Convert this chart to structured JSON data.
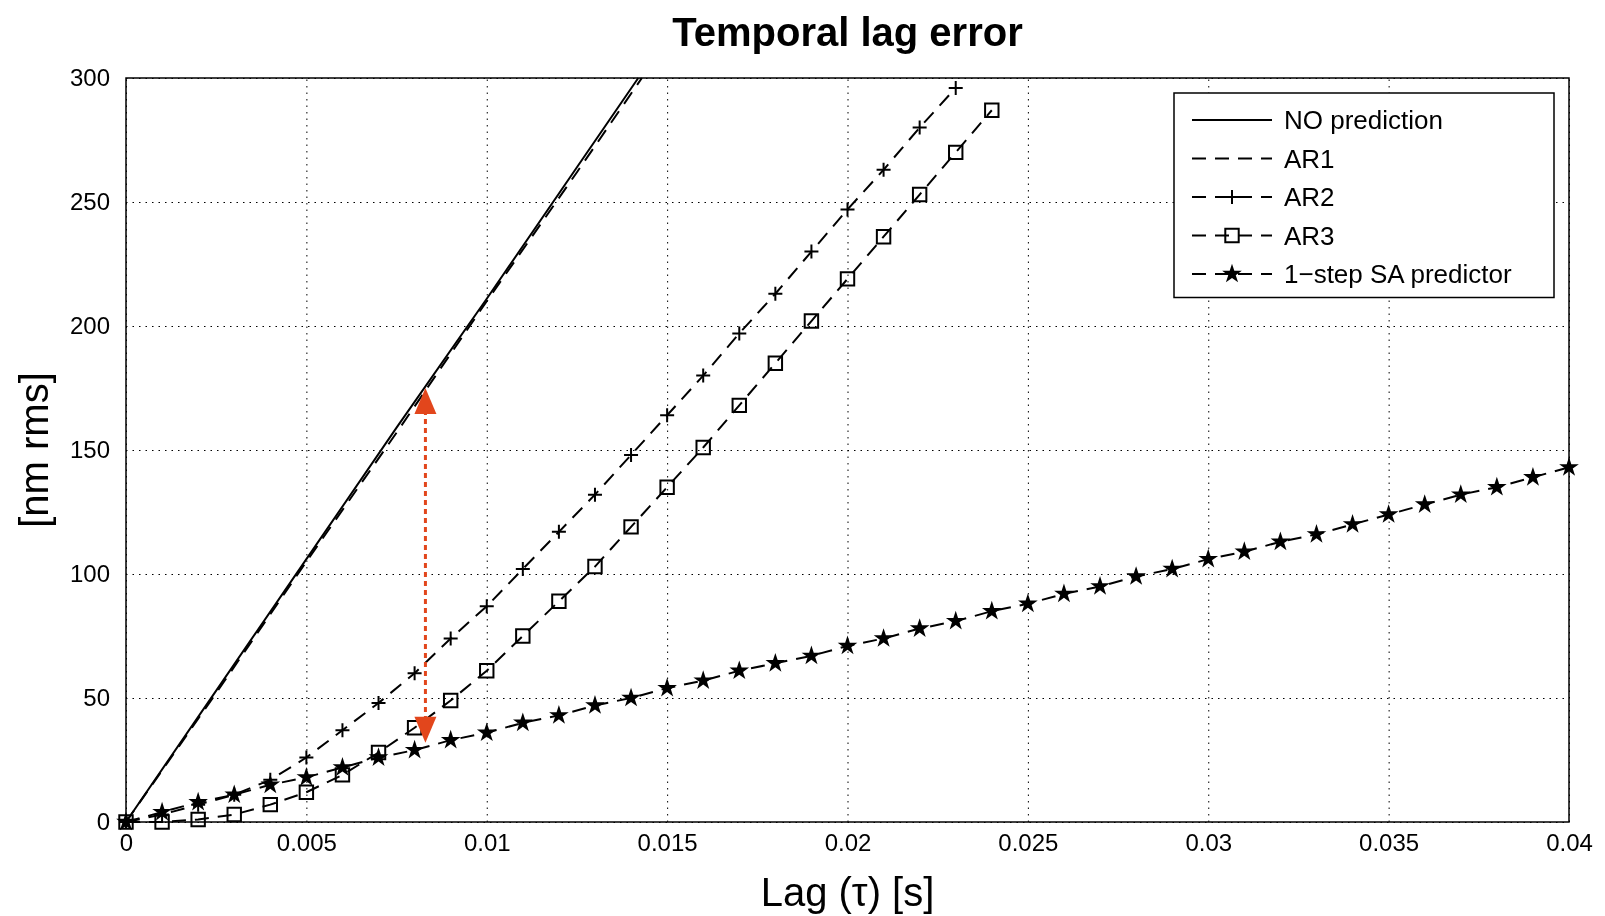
{
  "chart_data": {
    "type": "line",
    "title": "Temporal lag error",
    "xlabel": "Lag (τ) [s]",
    "ylabel": "[nm rms]",
    "xlim": [
      0,
      0.04
    ],
    "xticks": [
      0,
      0.005,
      0.01,
      0.015,
      0.02,
      0.025,
      0.03,
      0.035,
      0.04
    ],
    "ylim": [
      0,
      300
    ],
    "yticks": [
      0,
      50,
      100,
      150,
      200,
      250,
      300
    ],
    "grid": true,
    "legend": "top right",
    "series": [
      {
        "name": "NO prediction",
        "color": "#000000",
        "marker": "none",
        "line_style": "solid",
        "x": [
          0,
          0.0025,
          0.005,
          0.0075,
          0.01,
          0.0125,
          0.0142
        ],
        "values": [
          0,
          53,
          106,
          159,
          211,
          264,
          300
        ]
      },
      {
        "name": "AR1",
        "color": "#000000",
        "marker": "none",
        "line_style": "dashed",
        "x": [
          0,
          0.0025,
          0.005,
          0.0075,
          0.01,
          0.0125,
          0.0143
        ],
        "values": [
          0,
          52,
          105,
          157,
          210,
          262,
          300
        ]
      },
      {
        "name": "AR2",
        "color": "#000000",
        "marker": "cross",
        "line_style": "dashed",
        "x": [
          0,
          0.001,
          0.002,
          0.003,
          0.004,
          0.005,
          0.006,
          0.007,
          0.008,
          0.009,
          0.01,
          0.011,
          0.012,
          0.013,
          0.014,
          0.015,
          0.016,
          0.017,
          0.018,
          0.019,
          0.02,
          0.021,
          0.022,
          0.023
        ],
        "values": [
          0,
          3,
          7,
          11,
          17,
          26,
          37,
          48,
          60,
          74,
          87,
          102,
          117,
          132,
          148,
          164,
          180,
          197,
          213,
          230,
          247,
          263,
          280,
          296
        ]
      },
      {
        "name": "AR3",
        "color": "#000000",
        "marker": "square",
        "line_style": "dashed",
        "x": [
          0,
          0.001,
          0.002,
          0.003,
          0.004,
          0.005,
          0.006,
          0.007,
          0.008,
          0.009,
          0.01,
          0.011,
          0.012,
          0.013,
          0.014,
          0.015,
          0.016,
          0.017,
          0.018,
          0.019,
          0.02,
          0.021,
          0.022,
          0.023,
          0.024
        ],
        "values": [
          0,
          0,
          1,
          3,
          7,
          12,
          19,
          28,
          38,
          49,
          61,
          75,
          89,
          103,
          119,
          135,
          151,
          168,
          185,
          202,
          219,
          236,
          253,
          270,
          287
        ]
      },
      {
        "name": "1−step SA predictor",
        "color": "#000000",
        "marker": "star",
        "line_style": "dashed",
        "x": [
          0,
          0.001,
          0.002,
          0.003,
          0.004,
          0.005,
          0.006,
          0.007,
          0.008,
          0.009,
          0.01,
          0.011,
          0.012,
          0.013,
          0.014,
          0.015,
          0.016,
          0.017,
          0.018,
          0.019,
          0.02,
          0.021,
          0.022,
          0.023,
          0.024,
          0.025,
          0.026,
          0.027,
          0.028,
          0.029,
          0.03,
          0.031,
          0.032,
          0.033,
          0.034,
          0.035,
          0.036,
          0.037,
          0.038,
          0.039,
          0.04
        ],
        "values": [
          0,
          4,
          8,
          11,
          15,
          18,
          22,
          26,
          29,
          33,
          36,
          40,
          43,
          47,
          50,
          54,
          57,
          61,
          64,
          67,
          71,
          74,
          78,
          81,
          85,
          88,
          92,
          95,
          99,
          102,
          106,
          109,
          113,
          116,
          120,
          124,
          128,
          132,
          135,
          139,
          143
        ]
      }
    ]
  }
}
